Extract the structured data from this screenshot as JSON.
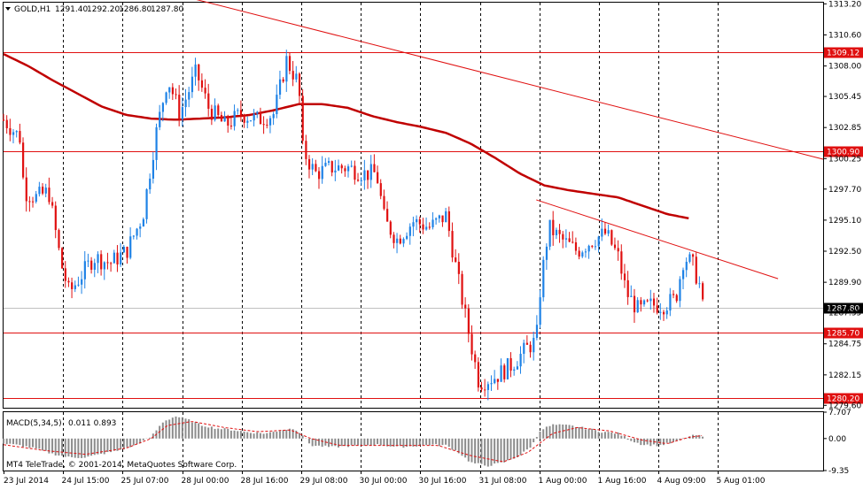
{
  "chart_data": {
    "type": "candlestick",
    "symbol": "GOLD",
    "timeframe": "H1",
    "symbol_header": "GOLD,H1",
    "ohlc_header": {
      "open": "1291.40",
      "high": "1292.20",
      "low": "1286.80",
      "close": "1287.80"
    },
    "y_ticks": [
      "1313.20",
      "1310.60",
      "1308.00",
      "1305.45",
      "1302.85",
      "1300.25",
      "1297.70",
      "1295.10",
      "1292.50",
      "1289.90",
      "1287.35",
      "1284.75",
      "1282.15",
      "1279.60"
    ],
    "ylim": [
      1279.4,
      1313.3
    ],
    "x_ticks": [
      "23 Jul 2014",
      "24 Jul 15:00",
      "25 Jul 07:00",
      "28 Jul 00:00",
      "28 Jul 16:00",
      "29 Jul 08:00",
      "30 Jul 00:00",
      "30 Jul 16:00",
      "31 Jul 08:00",
      "1 Aug 00:00",
      "1 Aug 16:00",
      "4 Aug 09:00",
      "5 Aug 01:00"
    ],
    "horizontal_levels": [
      {
        "value": 1309.12,
        "label": "1309.12",
        "color": "#e01010"
      },
      {
        "value": 1300.9,
        "label": "1300.90",
        "color": "#e01010"
      },
      {
        "value": 1285.7,
        "label": "1285.70",
        "color": "#e01010"
      },
      {
        "value": 1280.2,
        "label": "1280.20",
        "color": "#e01010"
      }
    ],
    "current_price": {
      "value": 1287.8,
      "label": "1287.80"
    },
    "trendlines": [
      {
        "from": [
          0.21,
          1314.0
        ],
        "to": [
          1.0,
          1300.2
        ]
      },
      {
        "from": [
          0.65,
          1296.8
        ],
        "to": [
          0.945,
          1290.2
        ]
      }
    ],
    "moving_average": {
      "color": "#c00000",
      "points": [
        [
          0.0,
          1309.0
        ],
        [
          0.03,
          1308.0
        ],
        [
          0.06,
          1306.8
        ],
        [
          0.09,
          1305.7
        ],
        [
          0.12,
          1304.6
        ],
        [
          0.15,
          1303.9
        ],
        [
          0.18,
          1303.6
        ],
        [
          0.21,
          1303.5
        ],
        [
          0.24,
          1303.6
        ],
        [
          0.27,
          1303.7
        ],
        [
          0.3,
          1303.9
        ],
        [
          0.33,
          1304.3
        ],
        [
          0.36,
          1304.8
        ],
        [
          0.39,
          1304.8
        ],
        [
          0.42,
          1304.5
        ],
        [
          0.45,
          1303.8
        ],
        [
          0.48,
          1303.3
        ],
        [
          0.51,
          1302.9
        ],
        [
          0.54,
          1302.4
        ],
        [
          0.57,
          1301.5
        ],
        [
          0.6,
          1300.3
        ],
        [
          0.63,
          1299.0
        ],
        [
          0.66,
          1298.0
        ],
        [
          0.69,
          1297.6
        ],
        [
          0.72,
          1297.3
        ],
        [
          0.75,
          1297.0
        ],
        [
          0.78,
          1296.3
        ],
        [
          0.81,
          1295.6
        ],
        [
          0.84,
          1295.2
        ]
      ]
    },
    "candle_anchors": [
      [
        0.0,
        1303.5
      ],
      [
        0.02,
        1302.0
      ],
      [
        0.025,
        1297.5
      ],
      [
        0.04,
        1297.0
      ],
      [
        0.055,
        1297.5
      ],
      [
        0.07,
        1291.5
      ],
      [
        0.08,
        1289.0
      ],
      [
        0.09,
        1290.0
      ],
      [
        0.11,
        1292.0
      ],
      [
        0.13,
        1291.5
      ],
      [
        0.15,
        1292.5
      ],
      [
        0.17,
        1295.5
      ],
      [
        0.185,
        1302.0
      ],
      [
        0.2,
        1307.0
      ],
      [
        0.215,
        1304.0
      ],
      [
        0.235,
        1307.5
      ],
      [
        0.25,
        1304.5
      ],
      [
        0.27,
        1303.0
      ],
      [
        0.29,
        1304.0
      ],
      [
        0.31,
        1303.5
      ],
      [
        0.33,
        1304.0
      ],
      [
        0.345,
        1308.5
      ],
      [
        0.36,
        1306.5
      ],
      [
        0.365,
        1301.0
      ],
      [
        0.38,
        1299.0
      ],
      [
        0.4,
        1299.5
      ],
      [
        0.42,
        1299.5
      ],
      [
        0.44,
        1299.0
      ],
      [
        0.455,
        1299.0
      ],
      [
        0.465,
        1295.0
      ],
      [
        0.48,
        1293.5
      ],
      [
        0.5,
        1295.0
      ],
      [
        0.52,
        1294.5
      ],
      [
        0.54,
        1295.5
      ],
      [
        0.555,
        1290.0
      ],
      [
        0.565,
        1286.5
      ],
      [
        0.58,
        1281.5
      ],
      [
        0.6,
        1282.0
      ],
      [
        0.62,
        1283.0
      ],
      [
        0.64,
        1284.5
      ],
      [
        0.65,
        1285.0
      ],
      [
        0.655,
        1289.5
      ],
      [
        0.665,
        1294.5
      ],
      [
        0.68,
        1293.5
      ],
      [
        0.7,
        1292.5
      ],
      [
        0.72,
        1293.5
      ],
      [
        0.735,
        1294.0
      ],
      [
        0.75,
        1292.0
      ],
      [
        0.76,
        1289.0
      ],
      [
        0.775,
        1287.5
      ],
      [
        0.79,
        1288.0
      ],
      [
        0.805,
        1288.0
      ],
      [
        0.82,
        1288.5
      ],
      [
        0.83,
        1292.0
      ],
      [
        0.84,
        1291.5
      ],
      [
        0.85,
        1289.5
      ],
      [
        0.853,
        1287.8
      ]
    ],
    "macd": {
      "label": "MACD(5,34,5)",
      "values": "0.011 0.893",
      "y_ticks": [
        "7.707",
        "0.00",
        "-9.35"
      ],
      "ylim": [
        -9.35,
        7.707
      ],
      "hist_anchors": [
        [
          0.0,
          -1.5
        ],
        [
          0.02,
          -2.0
        ],
        [
          0.04,
          -3.0
        ],
        [
          0.06,
          -4.5
        ],
        [
          0.08,
          -5.5
        ],
        [
          0.1,
          -5.5
        ],
        [
          0.12,
          -4.5
        ],
        [
          0.14,
          -3.5
        ],
        [
          0.16,
          -2.0
        ],
        [
          0.18,
          0.5
        ],
        [
          0.195,
          5.0
        ],
        [
          0.21,
          6.5
        ],
        [
          0.225,
          5.5
        ],
        [
          0.24,
          4.0
        ],
        [
          0.26,
          3.0
        ],
        [
          0.28,
          2.5
        ],
        [
          0.3,
          1.8
        ],
        [
          0.32,
          1.5
        ],
        [
          0.34,
          2.5
        ],
        [
          0.355,
          3.0
        ],
        [
          0.365,
          1.0
        ],
        [
          0.375,
          -2.0
        ],
        [
          0.4,
          -2.5
        ],
        [
          0.42,
          -2.2
        ],
        [
          0.44,
          -2.0
        ],
        [
          0.46,
          -1.8
        ],
        [
          0.48,
          -2.5
        ],
        [
          0.5,
          -2.2
        ],
        [
          0.52,
          -1.8
        ],
        [
          0.54,
          -2.0
        ],
        [
          0.555,
          -4.0
        ],
        [
          0.57,
          -7.0
        ],
        [
          0.59,
          -8.0
        ],
        [
          0.61,
          -7.0
        ],
        [
          0.63,
          -5.0
        ],
        [
          0.645,
          -2.0
        ],
        [
          0.655,
          2.5
        ],
        [
          0.67,
          4.0
        ],
        [
          0.69,
          3.8
        ],
        [
          0.71,
          3.0
        ],
        [
          0.73,
          2.0
        ],
        [
          0.75,
          1.5
        ],
        [
          0.765,
          -0.5
        ],
        [
          0.78,
          -1.8
        ],
        [
          0.8,
          -2.0
        ],
        [
          0.82,
          -1.0
        ],
        [
          0.835,
          0.5
        ],
        [
          0.845,
          1.0
        ],
        [
          0.853,
          0.5
        ]
      ],
      "signal_anchors": [
        [
          0.0,
          -1.8
        ],
        [
          0.05,
          -3.5
        ],
        [
          0.1,
          -4.6
        ],
        [
          0.15,
          -2.8
        ],
        [
          0.18,
          0.0
        ],
        [
          0.2,
          3.8
        ],
        [
          0.23,
          5.0
        ],
        [
          0.27,
          3.2
        ],
        [
          0.31,
          2.0
        ],
        [
          0.35,
          2.5
        ],
        [
          0.375,
          0.0
        ],
        [
          0.41,
          -2.0
        ],
        [
          0.47,
          -2.0
        ],
        [
          0.53,
          -2.0
        ],
        [
          0.57,
          -5.0
        ],
        [
          0.61,
          -6.8
        ],
        [
          0.64,
          -4.0
        ],
        [
          0.67,
          1.5
        ],
        [
          0.7,
          3.2
        ],
        [
          0.74,
          2.2
        ],
        [
          0.78,
          -0.5
        ],
        [
          0.81,
          -1.5
        ],
        [
          0.835,
          0.3
        ],
        [
          0.853,
          0.9
        ]
      ]
    },
    "colors": {
      "bull": "#1e82e6",
      "bear": "#e01010",
      "grid": "#000000",
      "level_box": "#e01010",
      "macd_hist": "#8c8c8c",
      "macd_signal": "#e01010",
      "price_box": "#000000"
    }
  },
  "copyright": "MT4 TeleTrade, © 2001-2014, MetaQuotes Software Corp."
}
